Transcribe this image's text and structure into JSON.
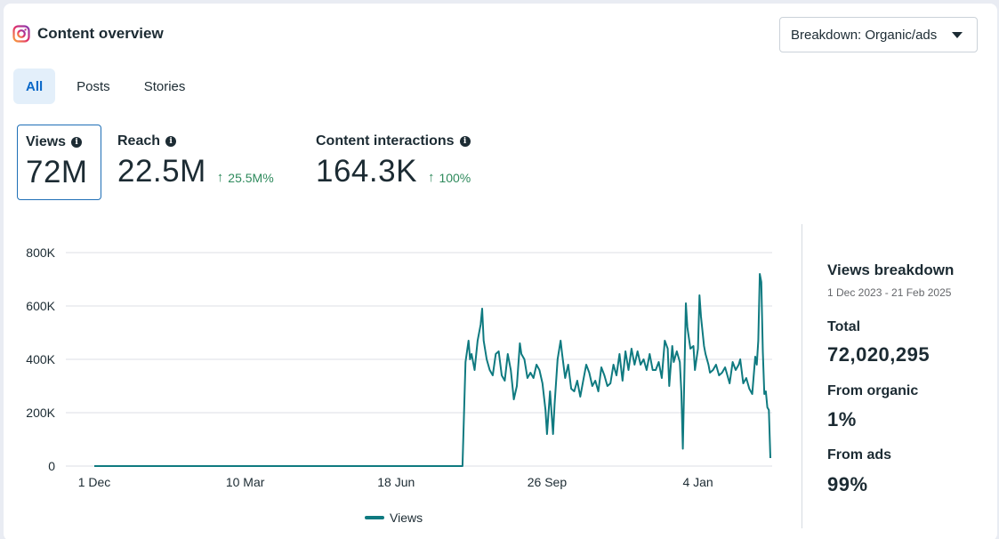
{
  "header": {
    "title": "Content overview",
    "icon": "instagram-icon"
  },
  "breakdown": {
    "label": "Breakdown: Organic/ads"
  },
  "tabs": [
    {
      "label": "All",
      "active": true
    },
    {
      "label": "Posts",
      "active": false
    },
    {
      "label": "Stories",
      "active": false
    }
  ],
  "metrics": [
    {
      "label": "Views",
      "value": "72M",
      "delta": "",
      "selected": true
    },
    {
      "label": "Reach",
      "value": "22.5M",
      "delta": "25.5M%",
      "selected": false
    },
    {
      "label": "Content interactions",
      "value": "164.3K",
      "delta": "100%",
      "selected": false
    }
  ],
  "colors": {
    "line": "#0f7a80",
    "up": "#2e8a5c",
    "accent": "#0a68c8"
  },
  "chart_data": {
    "type": "line",
    "title": "",
    "xlabel": "",
    "ylabel": "",
    "ylim": [
      0,
      800000
    ],
    "yticks": [
      0,
      200000,
      400000,
      600000,
      800000
    ],
    "ytick_labels": [
      "0",
      "200K",
      "400K",
      "600K",
      "800K"
    ],
    "xtick_labels": [
      "1 Dec",
      "10 Mar",
      "18 Jun",
      "26 Sep",
      "4 Jan"
    ],
    "xtick_index": [
      0,
      100,
      200,
      300,
      400
    ],
    "x_count": 449,
    "legend": "bottom-center",
    "series": [
      {
        "name": "Views",
        "points": [
          [
            0,
            0
          ],
          [
            244,
            0
          ],
          [
            246,
            390000
          ],
          [
            248,
            470000
          ],
          [
            249,
            400000
          ],
          [
            250,
            420000
          ],
          [
            252,
            360000
          ],
          [
            254,
            470000
          ],
          [
            256,
            530000
          ],
          [
            257,
            590000
          ],
          [
            258,
            470000
          ],
          [
            260,
            400000
          ],
          [
            262,
            360000
          ],
          [
            264,
            340000
          ],
          [
            266,
            420000
          ],
          [
            268,
            430000
          ],
          [
            270,
            340000
          ],
          [
            272,
            320000
          ],
          [
            274,
            420000
          ],
          [
            276,
            360000
          ],
          [
            278,
            250000
          ],
          [
            280,
            300000
          ],
          [
            282,
            460000
          ],
          [
            283,
            420000
          ],
          [
            285,
            400000
          ],
          [
            287,
            330000
          ],
          [
            289,
            350000
          ],
          [
            291,
            330000
          ],
          [
            293,
            380000
          ],
          [
            295,
            360000
          ],
          [
            297,
            310000
          ],
          [
            299,
            210000
          ],
          [
            300,
            120000
          ],
          [
            302,
            280000
          ],
          [
            304,
            120000
          ],
          [
            305,
            230000
          ],
          [
            307,
            400000
          ],
          [
            309,
            470000
          ],
          [
            310,
            420000
          ],
          [
            312,
            330000
          ],
          [
            314,
            380000
          ],
          [
            316,
            290000
          ],
          [
            318,
            280000
          ],
          [
            320,
            320000
          ],
          [
            322,
            260000
          ],
          [
            324,
            320000
          ],
          [
            326,
            380000
          ],
          [
            328,
            350000
          ],
          [
            330,
            300000
          ],
          [
            332,
            320000
          ],
          [
            334,
            280000
          ],
          [
            336,
            370000
          ],
          [
            338,
            340000
          ],
          [
            340,
            300000
          ],
          [
            342,
            310000
          ],
          [
            344,
            380000
          ],
          [
            346,
            340000
          ],
          [
            348,
            420000
          ],
          [
            350,
            320000
          ],
          [
            352,
            430000
          ],
          [
            354,
            360000
          ],
          [
            356,
            440000
          ],
          [
            358,
            380000
          ],
          [
            360,
            430000
          ],
          [
            362,
            380000
          ],
          [
            364,
            400000
          ],
          [
            366,
            360000
          ],
          [
            368,
            420000
          ],
          [
            370,
            360000
          ],
          [
            372,
            360000
          ],
          [
            374,
            390000
          ],
          [
            376,
            330000
          ],
          [
            378,
            470000
          ],
          [
            380,
            440000
          ],
          [
            381,
            300000
          ],
          [
            383,
            450000
          ],
          [
            384,
            390000
          ],
          [
            386,
            430000
          ],
          [
            388,
            390000
          ],
          [
            389,
            280000
          ],
          [
            390,
            65000
          ],
          [
            392,
            610000
          ],
          [
            393,
            520000
          ],
          [
            395,
            440000
          ],
          [
            397,
            450000
          ],
          [
            398,
            360000
          ],
          [
            400,
            440000
          ],
          [
            401,
            640000
          ],
          [
            402,
            560000
          ],
          [
            404,
            450000
          ],
          [
            405,
            420000
          ],
          [
            407,
            380000
          ],
          [
            408,
            350000
          ],
          [
            410,
            360000
          ],
          [
            412,
            380000
          ],
          [
            414,
            340000
          ],
          [
            416,
            350000
          ],
          [
            418,
            370000
          ],
          [
            420,
            330000
          ],
          [
            421,
            310000
          ],
          [
            423,
            390000
          ],
          [
            425,
            360000
          ],
          [
            427,
            380000
          ],
          [
            428,
            400000
          ],
          [
            430,
            310000
          ],
          [
            432,
            330000
          ],
          [
            434,
            290000
          ],
          [
            436,
            270000
          ],
          [
            438,
            410000
          ],
          [
            439,
            380000
          ],
          [
            440,
            470000
          ],
          [
            441,
            720000
          ],
          [
            442,
            690000
          ],
          [
            443,
            430000
          ],
          [
            444,
            270000
          ],
          [
            445,
            280000
          ],
          [
            446,
            220000
          ],
          [
            447,
            210000
          ],
          [
            448,
            30000
          ]
        ]
      }
    ]
  },
  "side": {
    "title": "Views breakdown",
    "date_range": "1 Dec 2023 - 21 Feb 2025",
    "total_label": "Total",
    "total_value": "72,020,295",
    "organic_label": "From organic",
    "organic_value": "1%",
    "ads_label": "From ads",
    "ads_value": "99%"
  }
}
